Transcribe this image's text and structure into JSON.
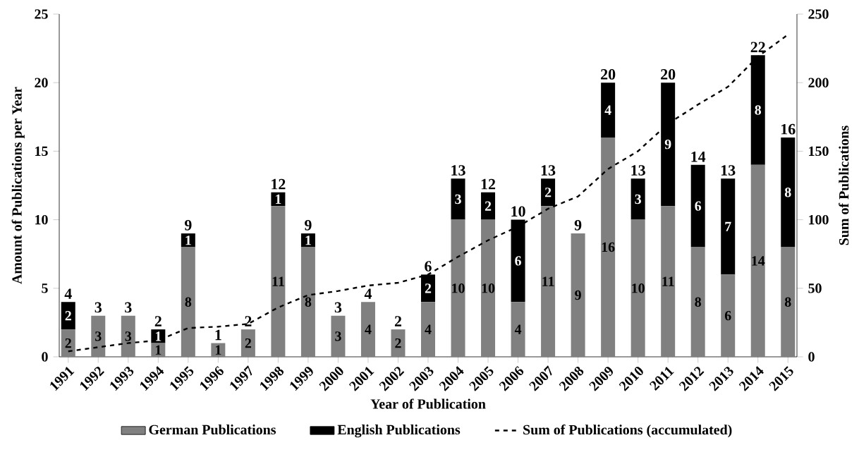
{
  "chart_data": {
    "type": "bar",
    "stacked": true,
    "xlabel": "Year of Publication",
    "ylabel": "Amount of Publications per Year",
    "y2label": "Sum of Publications",
    "categories": [
      "1991",
      "1992",
      "1993",
      "1994",
      "1995",
      "1996",
      "1997",
      "1998",
      "1999",
      "2000",
      "2001",
      "2002",
      "2003",
      "2004",
      "2005",
      "2006",
      "2007",
      "2008",
      "2009",
      "2010",
      "2011",
      "2012",
      "2013",
      "2014",
      "2015"
    ],
    "ylim": [
      0,
      25
    ],
    "yticks": [
      0,
      5,
      10,
      15,
      20,
      25
    ],
    "y2lim": [
      0,
      250
    ],
    "y2ticks": [
      0,
      50,
      100,
      150,
      200,
      250
    ],
    "legend": "bottom",
    "series": [
      {
        "name": "German Publications",
        "color": "#808080",
        "values": [
          2,
          3,
          3,
          1,
          8,
          1,
          2,
          11,
          8,
          3,
          4,
          2,
          4,
          10,
          10,
          4,
          11,
          9,
          16,
          10,
          11,
          8,
          6,
          14,
          8
        ],
        "value_labels": [
          "2",
          "3",
          "3",
          "1",
          "8",
          "1",
          "2",
          "11",
          "8",
          "3",
          "4",
          "2",
          "4",
          "10",
          "10",
          "4",
          "11",
          "9",
          "16",
          "10",
          "11",
          "8",
          "6",
          "14",
          "8"
        ]
      },
      {
        "name": "English Publications",
        "color": "#000000",
        "values": [
          2,
          0,
          0,
          1,
          1,
          0,
          0,
          1,
          1,
          0,
          0,
          0,
          2,
          3,
          2,
          6,
          2,
          0,
          4,
          3,
          9,
          6,
          7,
          8,
          8
        ],
        "value_labels": [
          "2",
          null,
          null,
          "1",
          "1",
          null,
          null,
          "1",
          "1",
          null,
          null,
          null,
          "2",
          "3",
          "2",
          "6",
          "2",
          null,
          "4",
          "3",
          "9",
          "6",
          "7",
          "8",
          "8"
        ]
      },
      {
        "name": "Sum of Publications (accumulated)",
        "type": "line",
        "axis": "y2",
        "line_style": "dashed",
        "color": "#000000",
        "values": [
          4,
          7,
          10,
          12,
          21,
          22,
          24,
          36,
          45,
          48,
          52,
          54,
          60,
          73,
          85,
          95,
          108,
          117,
          137,
          150,
          170,
          184,
          197,
          219,
          235
        ]
      }
    ],
    "totals": [
      "4",
      "3",
      "3",
      "2",
      "9",
      "1",
      "2",
      "12",
      "9",
      "3",
      "4",
      "2",
      "6",
      "13",
      "12",
      "10",
      "13",
      "9",
      "20",
      "13",
      "20",
      "14",
      "13",
      "22",
      "16"
    ]
  }
}
